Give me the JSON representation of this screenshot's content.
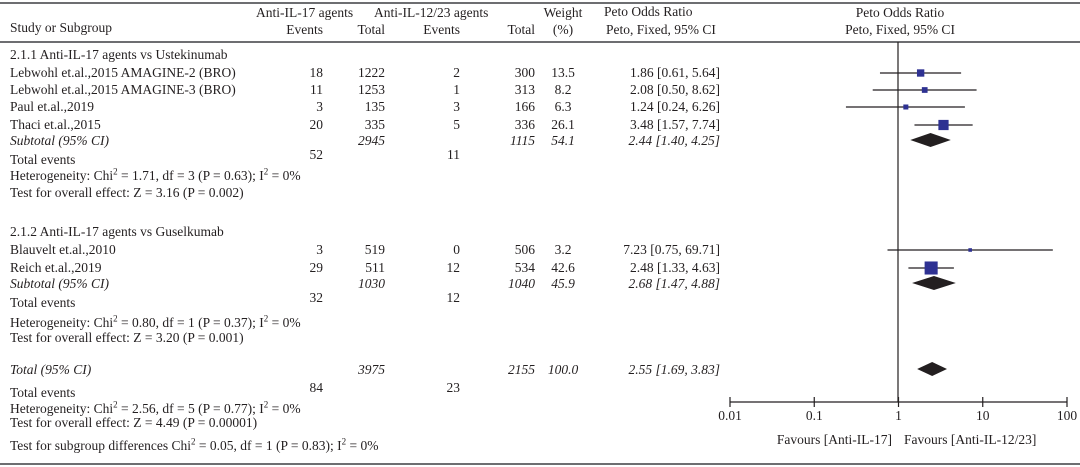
{
  "header": {
    "study": "Study or Subgroup",
    "group1": "Anti-IL-17 agents",
    "group2": "Anti-IL-12/23 agents",
    "events": "Events",
    "total": "Total",
    "weight": "Weight",
    "weight_unit": "(%)",
    "or_title": "Peto Odds Ratio",
    "or_method": "Peto, Fixed, 95% CI",
    "plot_title": "Peto Odds Ratio",
    "plot_method": "Peto, Fixed, 95% CI"
  },
  "chart_data": {
    "type": "forest",
    "x_scale": "log",
    "xlim": [
      0.01,
      100
    ],
    "x_ticks": [
      "0.01",
      "0.1",
      "1",
      "10",
      "100"
    ],
    "xlabel_left": "Favours [Anti-IL-17]",
    "xlabel_right": "Favours [Anti-IL-12/23]",
    "marker_color": "#2e3192",
    "diamond_color": "#231f20",
    "subgroups": [
      {
        "title": "2.1.1 Anti-IL-17 agents vs Ustekinumab",
        "studies": [
          {
            "name": "Lebwohl et.al.,2015 AMAGINE-2 (BRO)",
            "e1": "18",
            "t1": "1222",
            "e2": "2",
            "t2": "300",
            "weight": "13.5",
            "ci": "1.86 [0.61, 5.64]",
            "or": 1.86,
            "lo": 0.61,
            "hi": 5.64
          },
          {
            "name": "Lebwohl et.al.,2015 AMAGINE-3 (BRO)",
            "e1": "11",
            "t1": "1253",
            "e2": "1",
            "t2": "313",
            "weight": "8.2",
            "ci": "2.08 [0.50, 8.62]",
            "or": 2.08,
            "lo": 0.5,
            "hi": 8.62
          },
          {
            "name": "Paul et.al.,2019",
            "e1": "3",
            "t1": "135",
            "e2": "3",
            "t2": "166",
            "weight": "6.3",
            "ci": "1.24 [0.24, 6.26]",
            "or": 1.24,
            "lo": 0.24,
            "hi": 6.26
          },
          {
            "name": "Thaci et.al.,2015",
            "e1": "20",
            "t1": "335",
            "e2": "5",
            "t2": "336",
            "weight": "26.1",
            "ci": "3.48 [1.57, 7.74]",
            "or": 3.48,
            "lo": 1.57,
            "hi": 7.74
          }
        ],
        "subtotal": {
          "label": "Subtotal (95% CI)",
          "t1": "2945",
          "t2": "1115",
          "weight": "54.1",
          "ci": "2.44 [1.40, 4.25]",
          "or": 2.44,
          "lo": 1.4,
          "hi": 4.25
        },
        "total_events": {
          "label": "Total events",
          "e1": "52",
          "e2": "11"
        },
        "heterogeneity": {
          "pre": "Heterogeneity: Chi",
          "mid": " = 1.71, df = 3 (P = 0.63); I",
          "post": " = 0%"
        },
        "overall": "Test for overall effect: Z = 3.16 (P = 0.002)"
      },
      {
        "title": "2.1.2 Anti-IL-17 agents vs Guselkumab",
        "studies": [
          {
            "name": "Blauvelt et.al.,2010",
            "e1": "3",
            "t1": "519",
            "e2": "0",
            "t2": "506",
            "weight": "3.2",
            "ci": "7.23 [0.75, 69.71]",
            "or": 7.23,
            "lo": 0.75,
            "hi": 69.71
          },
          {
            "name": "Reich et.al.,2019",
            "e1": "29",
            "t1": "511",
            "e2": "12",
            "t2": "534",
            "weight": "42.6",
            "ci": "2.48 [1.33, 4.63]",
            "or": 2.48,
            "lo": 1.33,
            "hi": 4.63
          }
        ],
        "subtotal": {
          "label": "Subtotal (95% CI)",
          "t1": "1030",
          "t2": "1040",
          "weight": "45.9",
          "ci": "2.68 [1.47, 4.88]",
          "or": 2.68,
          "lo": 1.47,
          "hi": 4.88
        },
        "total_events": {
          "label": "Total events",
          "e1": "32",
          "e2": "12"
        },
        "heterogeneity": {
          "pre": "Heterogeneity: Chi",
          "mid": " = 0.80, df = 1 (P = 0.37); I",
          "post": " = 0%"
        },
        "overall": "Test for overall effect: Z = 3.20 (P = 0.001)"
      }
    ],
    "total": {
      "label": "Total (95% CI)",
      "t1": "3975",
      "t2": "2155",
      "weight": "100.0",
      "ci": "2.55 [1.69, 3.83]",
      "or": 2.55,
      "lo": 1.69,
      "hi": 3.83
    },
    "total_events": {
      "label": "Total events",
      "e1": "84",
      "e2": "23"
    },
    "heterogeneity": {
      "pre": "Heterogeneity: Chi",
      "mid": " = 2.56, df = 5 (P = 0.77); I",
      "post": " = 0%"
    },
    "overall": "Test for overall effect: Z = 4.49 (P = 0.00001)",
    "subgroup_diff": {
      "pre": "Test for subgroup differences Chi",
      "mid": " = 0.05, df = 1 (P = 0.83); I",
      "post": " = 0%"
    }
  }
}
